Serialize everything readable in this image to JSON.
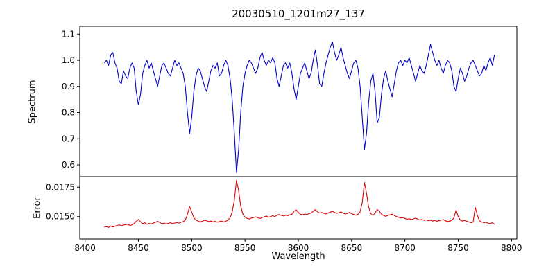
{
  "colors": {
    "spectrum_line": "#0000cc",
    "error_line": "#dd0000",
    "axis": "#000000",
    "background": "#ffffff"
  },
  "chart_data": {
    "type": "line",
    "title": "20030510_1201m27_137",
    "xlabel": "Wavelength",
    "xlim": [
      8395,
      8805
    ],
    "xticks": [
      8400,
      8450,
      8500,
      8550,
      8600,
      8650,
      8700,
      8750,
      8800
    ],
    "xtick_labels": [
      "8400",
      "8450",
      "8500",
      "8550",
      "8600",
      "8650",
      "8700",
      "8750",
      "8800"
    ],
    "grid": false,
    "legend": "none",
    "x": [
      8418,
      8420,
      8422,
      8424,
      8426,
      8428,
      8430,
      8432,
      8434,
      8436,
      8438,
      8440,
      8442,
      8444,
      8446,
      8448,
      8450,
      8452,
      8454,
      8456,
      8458,
      8460,
      8462,
      8464,
      8466,
      8468,
      8470,
      8472,
      8474,
      8476,
      8478,
      8480,
      8482,
      8484,
      8486,
      8488,
      8490,
      8492,
      8494,
      8496,
      8498,
      8500,
      8502,
      8504,
      8506,
      8508,
      8510,
      8512,
      8514,
      8516,
      8518,
      8520,
      8522,
      8524,
      8526,
      8528,
      8530,
      8532,
      8534,
      8536,
      8538,
      8540,
      8542,
      8544,
      8546,
      8548,
      8550,
      8552,
      8554,
      8556,
      8558,
      8560,
      8562,
      8564,
      8566,
      8568,
      8570,
      8572,
      8574,
      8576,
      8578,
      8580,
      8582,
      8584,
      8586,
      8588,
      8590,
      8592,
      8594,
      8596,
      8598,
      8600,
      8602,
      8604,
      8606,
      8608,
      8610,
      8612,
      8614,
      8616,
      8618,
      8620,
      8622,
      8624,
      8626,
      8628,
      8630,
      8632,
      8634,
      8636,
      8638,
      8640,
      8642,
      8644,
      8646,
      8648,
      8650,
      8652,
      8654,
      8656,
      8658,
      8660,
      8662,
      8664,
      8666,
      8668,
      8670,
      8672,
      8674,
      8676,
      8678,
      8680,
      8682,
      8684,
      8686,
      8688,
      8690,
      8692,
      8694,
      8696,
      8698,
      8700,
      8702,
      8704,
      8706,
      8708,
      8710,
      8712,
      8714,
      8716,
      8718,
      8720,
      8722,
      8724,
      8726,
      8728,
      8730,
      8732,
      8734,
      8736,
      8738,
      8740,
      8742,
      8744,
      8746,
      8748,
      8750,
      8752,
      8754,
      8756,
      8758,
      8760,
      8762,
      8764,
      8766,
      8768,
      8770,
      8772,
      8774,
      8776,
      8778,
      8780,
      8782,
      8784
    ],
    "panels": [
      {
        "name": "spectrum",
        "ylabel": "Spectrum",
        "color": "#0000cc",
        "ylim": [
          0.555,
          1.13
        ],
        "yticks": [
          0.6,
          0.7,
          0.8,
          0.9,
          1.0,
          1.1
        ],
        "ytick_labels": [
          "0.6",
          "0.7",
          "0.8",
          "0.9",
          "1.0",
          "1.1"
        ],
        "absorption_lines_wavelengths": [
          8498,
          8542,
          8662
        ],
        "values": [
          0.99,
          1.0,
          0.98,
          1.02,
          1.03,
          0.99,
          0.97,
          0.92,
          0.91,
          0.96,
          0.94,
          0.93,
          0.97,
          0.99,
          0.97,
          0.88,
          0.83,
          0.87,
          0.95,
          0.98,
          1.0,
          0.97,
          0.99,
          0.96,
          0.93,
          0.9,
          0.94,
          0.98,
          0.99,
          0.97,
          0.95,
          0.94,
          0.97,
          1.0,
          0.98,
          0.99,
          0.97,
          0.95,
          0.9,
          0.8,
          0.72,
          0.78,
          0.88,
          0.94,
          0.97,
          0.96,
          0.93,
          0.9,
          0.88,
          0.92,
          0.96,
          0.98,
          0.97,
          0.99,
          0.94,
          0.95,
          0.98,
          1.0,
          0.98,
          0.93,
          0.85,
          0.72,
          0.57,
          0.66,
          0.8,
          0.9,
          0.95,
          0.98,
          1.0,
          0.99,
          0.97,
          0.95,
          0.97,
          1.01,
          1.03,
          1.0,
          0.98,
          1.0,
          0.99,
          1.01,
          0.99,
          0.93,
          0.9,
          0.94,
          0.98,
          0.99,
          0.97,
          0.99,
          0.95,
          0.89,
          0.85,
          0.9,
          0.95,
          0.97,
          0.99,
          0.96,
          0.93,
          0.95,
          1.0,
          1.04,
          0.98,
          0.91,
          0.9,
          0.95,
          0.99,
          1.02,
          1.05,
          1.07,
          1.03,
          1.0,
          1.02,
          1.05,
          1.01,
          0.98,
          0.95,
          0.93,
          0.96,
          0.99,
          1.0,
          0.97,
          0.9,
          0.78,
          0.66,
          0.72,
          0.84,
          0.92,
          0.95,
          0.88,
          0.76,
          0.78,
          0.87,
          0.93,
          0.96,
          0.92,
          0.89,
          0.86,
          0.91,
          0.96,
          0.99,
          1.0,
          0.98,
          1.0,
          0.99,
          1.01,
          0.98,
          0.95,
          0.92,
          0.95,
          0.98,
          0.96,
          0.95,
          0.98,
          1.02,
          1.06,
          1.03,
          1.0,
          0.98,
          1.0,
          0.97,
          0.95,
          0.98,
          1.0,
          0.99,
          0.96,
          0.9,
          0.88,
          0.93,
          0.97,
          0.95,
          0.92,
          0.94,
          0.97,
          0.99,
          1.0,
          0.98,
          0.96,
          0.94,
          0.95,
          0.98,
          0.96,
          0.99,
          1.01,
          0.98,
          1.02
        ]
      },
      {
        "name": "error",
        "ylabel": "Error",
        "color": "#dd0000",
        "ylim": [
          0.0131,
          0.0184
        ],
        "yticks": [
          0.015,
          0.0175
        ],
        "ytick_labels": [
          "0.0150",
          "0.0175"
        ],
        "values": [
          0.0141,
          0.01415,
          0.01408,
          0.0142,
          0.01412,
          0.01418,
          0.01425,
          0.0143,
          0.01422,
          0.01428,
          0.01432,
          0.01435,
          0.01425,
          0.0143,
          0.0144,
          0.0146,
          0.01475,
          0.01455,
          0.0144,
          0.01448,
          0.01435,
          0.01442,
          0.01438,
          0.01445,
          0.01452,
          0.0146,
          0.0145,
          0.0144,
          0.01445,
          0.01438,
          0.01442,
          0.01448,
          0.0144,
          0.01445,
          0.0145,
          0.01445,
          0.01452,
          0.01458,
          0.0147,
          0.0152,
          0.01585,
          0.0154,
          0.0149,
          0.0147,
          0.01462,
          0.01455,
          0.0146,
          0.0147,
          0.01465,
          0.01458,
          0.01462,
          0.01455,
          0.0146,
          0.01452,
          0.01458,
          0.01462,
          0.01455,
          0.0146,
          0.0147,
          0.0149,
          0.0154,
          0.0164,
          0.0181,
          0.0172,
          0.0159,
          0.0152,
          0.01495,
          0.01485,
          0.0148,
          0.01488,
          0.01492,
          0.01498,
          0.0149,
          0.01485,
          0.01492,
          0.01498,
          0.01505,
          0.01495,
          0.015,
          0.01508,
          0.015,
          0.01512,
          0.01518,
          0.0151,
          0.01505,
          0.01512,
          0.01508,
          0.01515,
          0.0152,
          0.01545,
          0.01558,
          0.01535,
          0.0152,
          0.01515,
          0.01522,
          0.01518,
          0.01525,
          0.0153,
          0.01545,
          0.0156,
          0.0154,
          0.0153,
          0.01535,
          0.01528,
          0.01522,
          0.0153,
          0.01538,
          0.01545,
          0.01535,
          0.01528,
          0.01532,
          0.0154,
          0.0153,
          0.01522,
          0.01528,
          0.01535,
          0.01525,
          0.01518,
          0.01512,
          0.0152,
          0.0154,
          0.0162,
          0.0179,
          0.017,
          0.0158,
          0.01525,
          0.0151,
          0.0153,
          0.0156,
          0.01545,
          0.0152,
          0.0151,
          0.01502,
          0.0151,
          0.01515,
          0.0152,
          0.0151,
          0.015,
          0.01495,
          0.01488,
          0.01492,
          0.01485,
          0.01478,
          0.01482,
          0.01475,
          0.0148,
          0.01488,
          0.01478,
          0.0147,
          0.01476,
          0.01468,
          0.01472,
          0.01465,
          0.0147,
          0.01462,
          0.01468,
          0.0146,
          0.01465,
          0.0147,
          0.01475,
          0.01465,
          0.01458,
          0.01462,
          0.01468,
          0.0149,
          0.01555,
          0.015,
          0.0147,
          0.01462,
          0.01468,
          0.0146,
          0.01455,
          0.01448,
          0.01455,
          0.0158,
          0.0151,
          0.01465,
          0.01455,
          0.01448,
          0.01452,
          0.01445,
          0.0144,
          0.01448,
          0.01435
        ]
      }
    ]
  }
}
